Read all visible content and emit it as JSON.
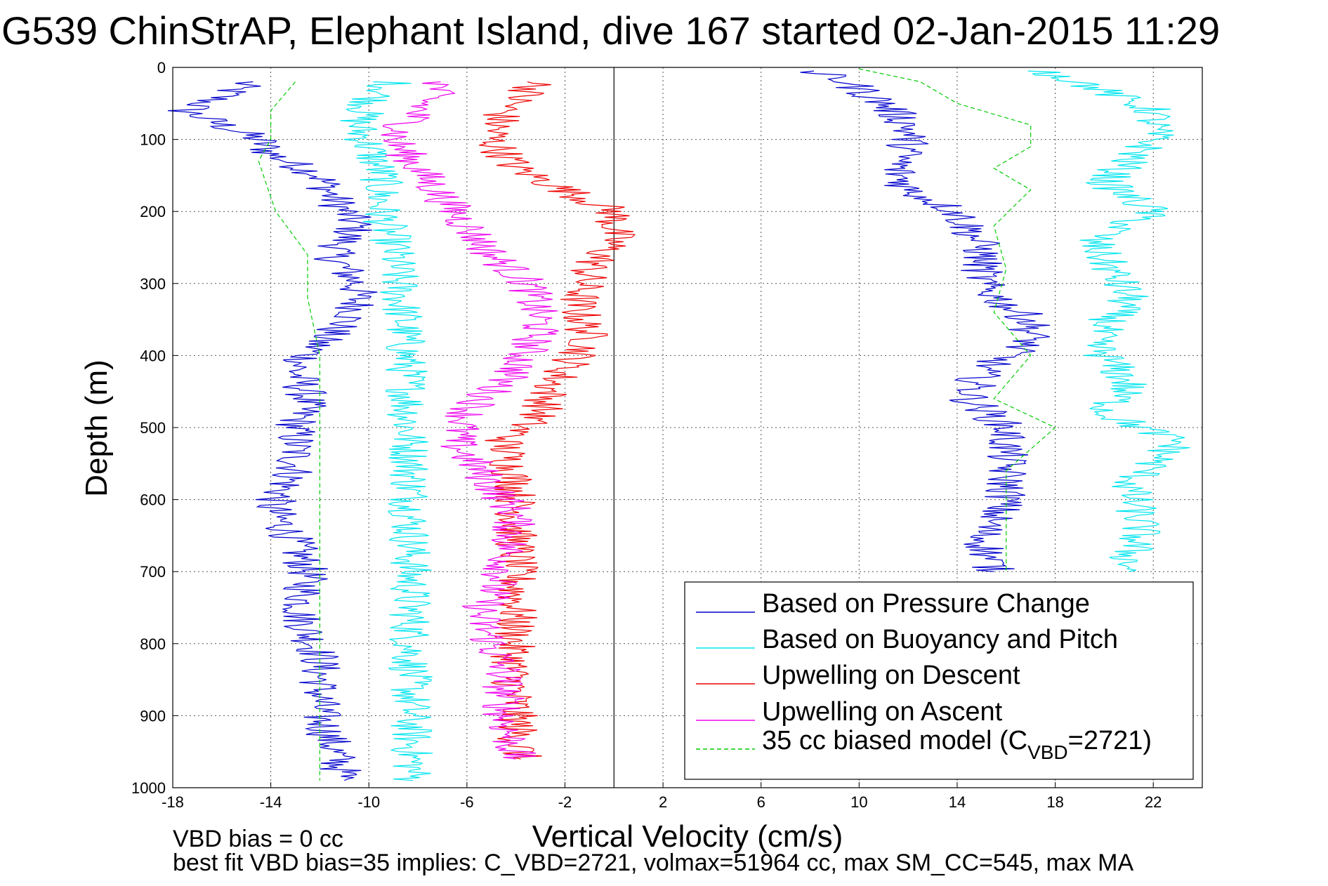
{
  "chart_data": {
    "type": "line",
    "title": "G539 ChinStrAP, Elephant Island, dive 167 started 02-Jan-2015 11:29",
    "xlabel": "Vertical Velocity (cm/s)",
    "ylabel": "Depth (m)",
    "xlim": [
      -18,
      24
    ],
    "ylim": [
      0,
      1000
    ],
    "y_reversed": true,
    "grid": true,
    "xticks": [
      -18,
      -14,
      -10,
      -6,
      -2,
      2,
      6,
      10,
      14,
      18,
      22
    ],
    "yticks": [
      0,
      100,
      200,
      300,
      400,
      500,
      600,
      700,
      800,
      900,
      1000
    ],
    "vertical_reference_line_x": 0,
    "legend_location": "bottom-right",
    "legend": [
      {
        "label": "Based on Pressure Change",
        "color": "#0000cc",
        "style": "solid"
      },
      {
        "label": "Based on Buoyancy and Pitch",
        "color": "#00e5ee",
        "style": "solid"
      },
      {
        "label": "Upwelling on Descent",
        "color": "#ee0000",
        "style": "solid"
      },
      {
        "label": "Upwelling on Ascent",
        "color": "#ee00ee",
        "style": "solid"
      },
      {
        "label": "35 cc biased model (C",
        "sub": "VBD",
        "label_end": "=2721)",
        "color": "#00cc00",
        "style": "dashed"
      }
    ],
    "series": [
      {
        "name": "Based on Pressure Change",
        "color": "#0000cc",
        "dashed": false,
        "x": [
          -15,
          -16,
          -17.5,
          -16,
          -14.5,
          -14,
          -12,
          -11.5,
          -10.5,
          -11.5,
          -10.5,
          -10.5,
          -12,
          -13,
          -12.5,
          -13,
          -13,
          -14,
          -13.2,
          -12.5,
          -12.8,
          -12,
          -12,
          -12,
          -11.5,
          -11.2,
          -11
        ],
        "y": [
          20,
          40,
          60,
          80,
          100,
          120,
          150,
          180,
          220,
          260,
          300,
          340,
          380,
          420,
          460,
          500,
          560,
          610,
          650,
          700,
          760,
          820,
          860,
          900,
          940,
          970,
          990
        ]
      },
      {
        "name": "Based on Buoyancy and Pitch",
        "color": "#00e5ee",
        "dashed": false,
        "x": [
          -9,
          -10,
          -10.5,
          -10,
          -9.5,
          -9.5,
          -9,
          -8.8,
          -8.6,
          -8.5,
          -8.4,
          -8.4,
          -8.3,
          -8.3,
          -8.3,
          -8.3,
          -8.3,
          -8.3,
          -8.2
        ],
        "y": [
          20,
          50,
          80,
          110,
          150,
          200,
          250,
          300,
          350,
          400,
          450,
          500,
          550,
          600,
          650,
          700,
          800,
          900,
          990
        ]
      },
      {
        "name": "Upwelling on Descent",
        "color": "#ee0000",
        "dashed": false,
        "x": [
          -3,
          -4.5,
          -5,
          -4,
          -2,
          0,
          0,
          -1,
          -1.5,
          -1,
          -2.5,
          -3,
          -4.5,
          -4,
          -4,
          -4,
          -4,
          -4.2,
          -4,
          -3.8
        ],
        "y": [
          20,
          60,
          100,
          140,
          170,
          200,
          240,
          280,
          330,
          380,
          440,
          480,
          520,
          580,
          620,
          700,
          760,
          840,
          900,
          960
        ]
      },
      {
        "name": "Upwelling on Ascent",
        "color": "#ee00ee",
        "dashed": false,
        "x": [
          -7,
          -8,
          -9,
          -8,
          -7,
          -6,
          -5,
          -3.5,
          -3,
          -4,
          -6,
          -6.5,
          -5.5,
          -4,
          -4.5,
          -5.5,
          -4.5,
          -4.5,
          -4
        ],
        "y": [
          20,
          60,
          100,
          140,
          180,
          220,
          260,
          300,
          360,
          420,
          480,
          520,
          560,
          620,
          700,
          760,
          840,
          900,
          960
        ]
      },
      {
        "name": "35 cc biased model",
        "color": "#00cc00",
        "dashed": true,
        "x": [
          -13,
          -14,
          -14,
          -14.5,
          -13.8,
          -12.5,
          -12.5,
          -12,
          -12,
          -12,
          -12,
          -12,
          -12,
          -12,
          -12,
          -12,
          -12
        ],
        "y": [
          20,
          60,
          100,
          130,
          200,
          260,
          320,
          400,
          460,
          520,
          600,
          660,
          720,
          800,
          880,
          940,
          990
        ]
      },
      {
        "name": "Based on Pressure Change (ascent)",
        "color": "#0000cc",
        "dashed": false,
        "x": [
          8,
          9.5,
          11,
          12,
          12,
          11.5,
          12,
          14,
          15,
          15,
          16,
          17,
          17,
          15,
          14.5,
          16,
          16,
          16,
          15,
          15.5
        ],
        "y": [
          5,
          20,
          50,
          80,
          110,
          140,
          170,
          200,
          250,
          300,
          330,
          350,
          380,
          420,
          460,
          500,
          560,
          600,
          650,
          700
        ]
      },
      {
        "name": "Based on Buoyancy and Pitch (ascent)",
        "color": "#00e5ee",
        "dashed": false,
        "x": [
          17.5,
          19,
          22,
          22,
          21,
          20,
          22,
          19.5,
          21,
          19.5,
          21,
          20,
          23,
          21,
          21.5,
          21,
          21
        ],
        "y": [
          5,
          20,
          60,
          100,
          130,
          160,
          200,
          240,
          320,
          380,
          440,
          480,
          520,
          580,
          640,
          680,
          700
        ]
      },
      {
        "name": "35 cc biased model (ascent)",
        "color": "#00cc00",
        "dashed": true,
        "x": [
          10,
          12.5,
          14,
          17,
          17,
          15.5,
          17,
          15.5,
          16,
          15.5,
          17,
          15.5,
          18,
          16,
          16,
          16,
          16
        ],
        "y": [
          2,
          20,
          50,
          80,
          110,
          140,
          170,
          220,
          280,
          340,
          400,
          460,
          500,
          560,
          600,
          660,
          700
        ]
      }
    ]
  },
  "footnote_lines": [
    "VBD bias = 0 cc",
    "best fit VBD bias=35 implies: C_VBD=2721, volmax=51964 cc, max SM_CC=545, max MA"
  ]
}
